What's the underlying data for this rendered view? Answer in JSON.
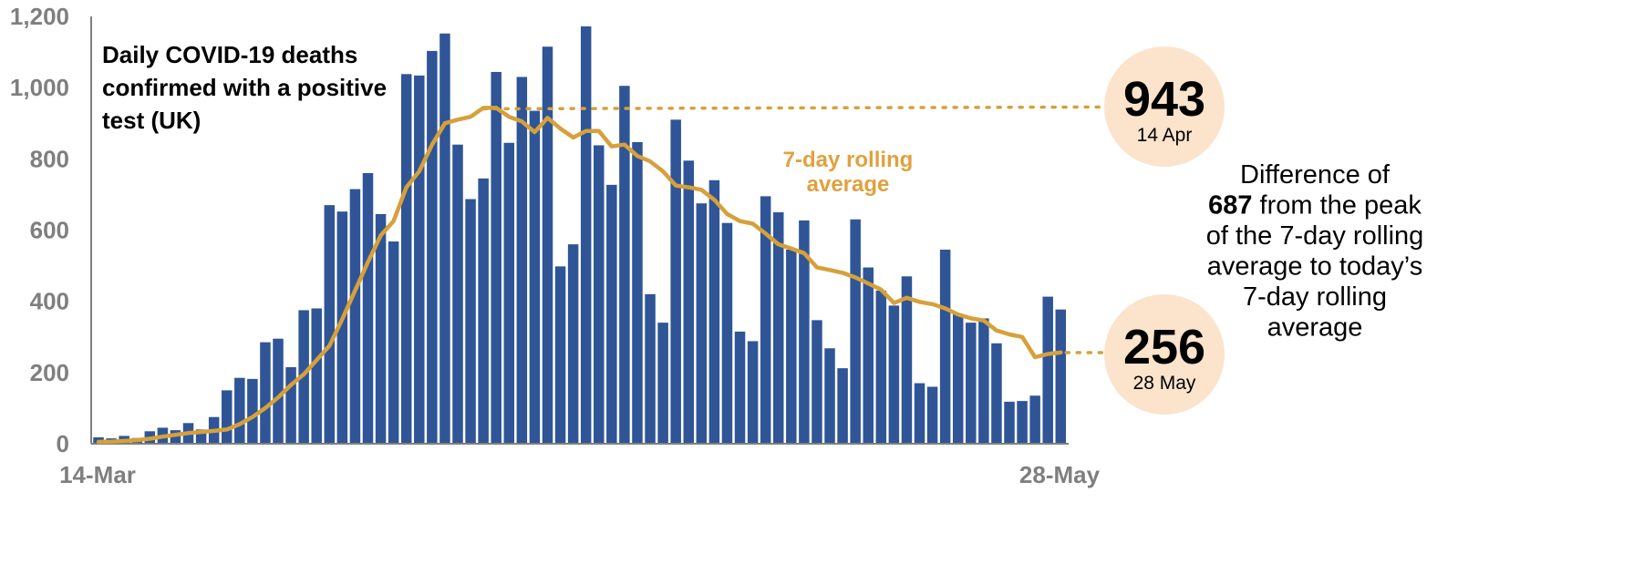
{
  "colors": {
    "bar": "#2f5597",
    "line": "#d6a03b",
    "circle": "#fbe3cc",
    "axis": "#7f7f7f",
    "avg_label": "#e0a13e"
  },
  "chart_data": {
    "type": "bar",
    "title_lines": [
      "Daily COVID-19 deaths",
      "confirmed with a positive",
      "test (UK)"
    ],
    "x_range": [
      "14-Mar",
      "28-May"
    ],
    "xtick_labels": [
      "14-Mar",
      "28-May"
    ],
    "ylim": [
      0,
      1200
    ],
    "yticks": [
      0,
      200,
      400,
      600,
      800,
      1000,
      1200
    ],
    "ytick_labels": [
      "0",
      "200",
      "400",
      "600",
      "800",
      "1,000",
      "1,200"
    ],
    "grid": false,
    "series": [
      {
        "name": "Daily COVID-19 deaths",
        "kind": "bar",
        "values": [
          18,
          15,
          22,
          16,
          35,
          45,
          38,
          58,
          40,
          75,
          150,
          185,
          182,
          285,
          295,
          215,
          375,
          380,
          670,
          652,
          715,
          760,
          645,
          568,
          1038,
          1034,
          1103,
          1152,
          840,
          687,
          745,
          1044,
          845,
          1030,
          935,
          1115,
          498,
          560,
          1172,
          838,
          727,
          1005,
          847,
          420,
          340,
          910,
          795,
          675,
          740,
          620,
          315,
          288,
          695,
          650,
          545,
          627,
          347,
          268,
          212,
          630,
          495,
          430,
          388,
          470,
          170,
          160,
          545,
          365,
          340,
          352,
          282,
          118,
          120,
          135,
          413,
          377
        ]
      },
      {
        "name": "7-day rolling average",
        "kind": "line",
        "values": [
          5,
          6,
          8,
          10,
          14,
          20,
          25,
          30,
          33,
          36,
          40,
          55,
          75,
          100,
          130,
          165,
          195,
          235,
          275,
          350,
          430,
          510,
          585,
          625,
          720,
          765,
          840,
          900,
          910,
          918,
          943,
          943,
          918,
          905,
          875,
          915,
          885,
          860,
          878,
          878,
          835,
          840,
          808,
          793,
          765,
          725,
          720,
          713,
          685,
          645,
          625,
          618,
          590,
          560,
          548,
          535,
          495,
          488,
          480,
          467,
          450,
          433,
          395,
          410,
          398,
          392,
          380,
          363,
          352,
          346,
          318,
          307,
          300,
          243,
          252,
          256
        ]
      }
    ],
    "annotations": {
      "avg_label_lines": [
        "7-day rolling",
        "average"
      ],
      "peak": {
        "value": "943",
        "date": "14 Apr"
      },
      "current": {
        "value": "256",
        "date": "28 May"
      },
      "difference_lines": [
        {
          "parts": [
            {
              "text": "Difference of",
              "bold": false
            }
          ]
        },
        {
          "parts": [
            {
              "text": "687",
              "bold": true
            },
            {
              "text": " from the peak",
              "bold": false
            }
          ]
        },
        {
          "parts": [
            {
              "text": "of the 7-day rolling",
              "bold": false
            }
          ]
        },
        {
          "parts": [
            {
              "text": "average to today’s",
              "bold": false
            }
          ]
        },
        {
          "parts": [
            {
              "text": "7-day rolling",
              "bold": false
            }
          ]
        },
        {
          "parts": [
            {
              "text": "average",
              "bold": false
            }
          ]
        }
      ]
    }
  }
}
